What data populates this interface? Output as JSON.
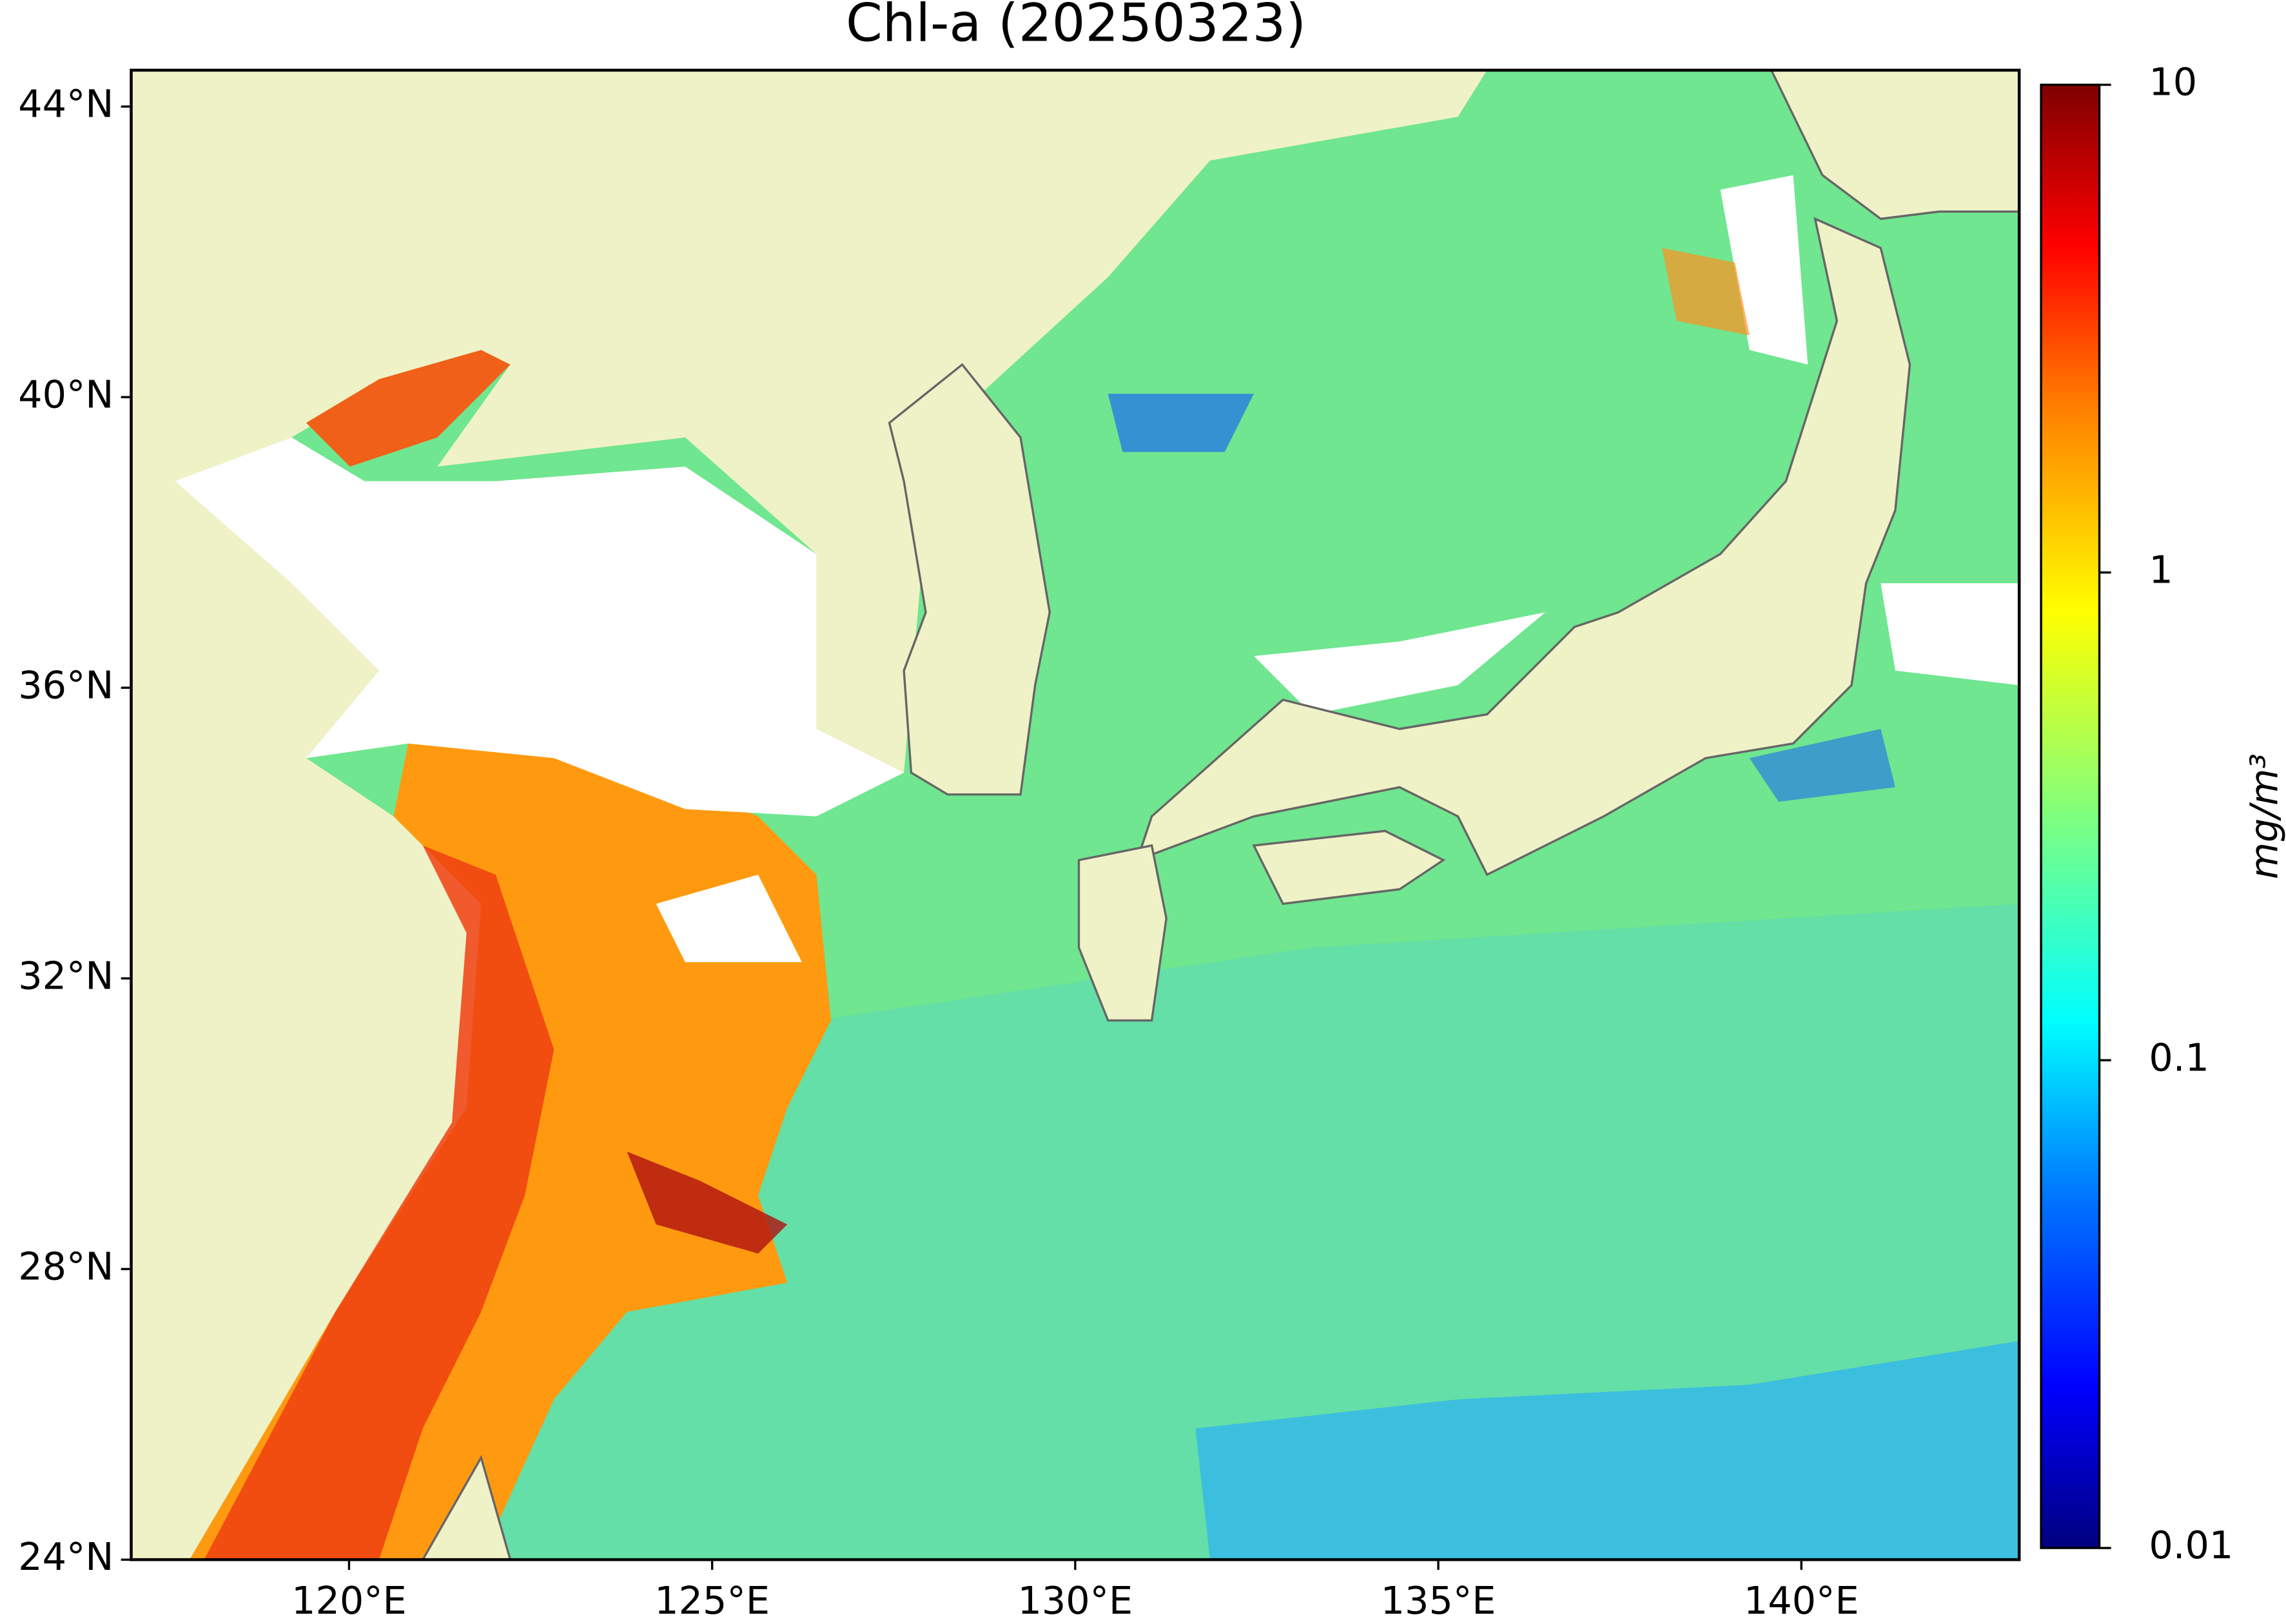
{
  "map": {
    "title": "Chl-a (20250323)",
    "xlim": [
      117,
      143
    ],
    "ylim": [
      24,
      44.5
    ],
    "lon_ticks": [
      {
        "value": 120,
        "label": "120°E"
      },
      {
        "value": 125,
        "label": "125°E"
      },
      {
        "value": 130,
        "label": "130°E"
      },
      {
        "value": 135,
        "label": "135°E"
      },
      {
        "value": 140,
        "label": "140°E"
      }
    ],
    "lat_ticks": [
      {
        "value": 24,
        "label": "24°N"
      },
      {
        "value": 28,
        "label": "28°N"
      },
      {
        "value": 32,
        "label": "32°N"
      },
      {
        "value": 36,
        "label": "36°N"
      },
      {
        "value": 40,
        "label": "40°N"
      },
      {
        "value": 44,
        "label": "44°N"
      }
    ],
    "colorbar": {
      "label": "mg/m³",
      "scale": "log",
      "lim": [
        0.01,
        10
      ],
      "ticks": [
        10,
        1,
        0.1,
        0.01
      ]
    }
  }
}
